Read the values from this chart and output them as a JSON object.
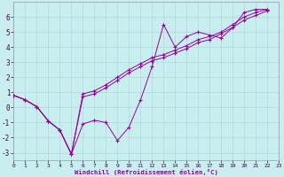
{
  "xlabel": "Windchill (Refroidissement éolien,°C)",
  "bg_color": "#c8eef0",
  "grid_color": "#b0d8dc",
  "line_color": "#990099",
  "xlim": [
    0,
    23
  ],
  "ylim": [
    -3.5,
    7.0
  ],
  "xticks": [
    0,
    1,
    2,
    3,
    4,
    5,
    6,
    7,
    8,
    9,
    10,
    11,
    12,
    13,
    14,
    15,
    16,
    17,
    18,
    19,
    20,
    21,
    22,
    23
  ],
  "yticks": [
    -3,
    -2,
    -1,
    0,
    1,
    2,
    3,
    4,
    5,
    6
  ],
  "series": [
    [
      0.8,
      0.5,
      0.05,
      -0.9,
      -1.5,
      -3.1,
      -1.1,
      -0.85,
      -1.0,
      -2.2,
      -1.3,
      0.5,
      2.7,
      5.5,
      4.0,
      4.7,
      5.0,
      4.8,
      4.6,
      5.3,
      6.3,
      6.5,
      6.5
    ],
    [
      0.8,
      0.5,
      0.05,
      -0.9,
      -1.5,
      -3.1,
      0.9,
      1.1,
      1.5,
      2.0,
      2.5,
      2.9,
      3.3,
      3.5,
      3.8,
      4.1,
      4.5,
      4.7,
      5.0,
      5.5,
      6.0,
      6.3,
      6.5
    ],
    [
      0.8,
      0.5,
      0.05,
      -0.9,
      -1.5,
      -3.1,
      0.7,
      0.9,
      1.3,
      1.8,
      2.3,
      2.7,
      3.1,
      3.3,
      3.6,
      3.9,
      4.3,
      4.5,
      4.9,
      5.3,
      5.8,
      6.1,
      6.4
    ]
  ]
}
